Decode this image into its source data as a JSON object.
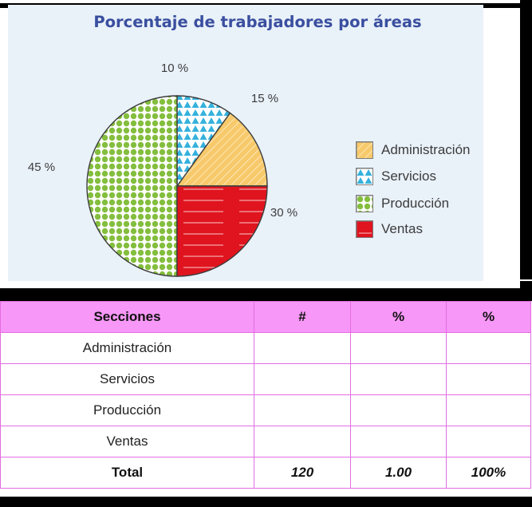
{
  "chart_data": {
    "type": "pie",
    "title": "Porcentaje de trabajadores por áreas",
    "slices": [
      {
        "name": "Administración",
        "value": 15,
        "label": "15 %",
        "color": "#f7c96a",
        "pattern": "diagonal-stripes"
      },
      {
        "name": "Servicios",
        "value": 10,
        "label": "10 %",
        "color": "#34b1dd",
        "pattern": "triangles"
      },
      {
        "name": "Producción",
        "value": 45,
        "label": "45 %",
        "color": "#84be3e",
        "pattern": "dots"
      },
      {
        "name": "Ventas",
        "value": 30,
        "label": "30 %",
        "color": "#e0141e",
        "pattern": "horizontal-lines"
      }
    ],
    "legend": [
      "Administración",
      "Servicios",
      "Producción",
      "Ventas"
    ],
    "legend_position": "right"
  },
  "table": {
    "headers": [
      "Secciones",
      "#",
      "%",
      "%"
    ],
    "rows": [
      {
        "label": "Administración"
      },
      {
        "label": "Servicios"
      },
      {
        "label": "Producción"
      },
      {
        "label": "Ventas"
      }
    ],
    "total": {
      "label": "Total",
      "count": "120",
      "fraction": "1.00",
      "percent": "100%"
    }
  },
  "colors": {
    "header_bg": "#f797f7",
    "grid_line": "#e36de3",
    "title": "#3a4f9f",
    "panel_bg": "#e9f1f9"
  }
}
